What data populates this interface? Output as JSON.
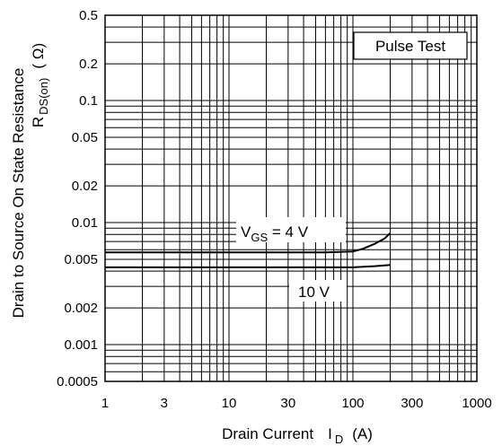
{
  "chart_data": {
    "type": "line",
    "x_scale": "log",
    "y_scale": "log",
    "xlim": [
      1,
      1000
    ],
    "ylim": [
      0.0005,
      0.5
    ],
    "grid": true,
    "x_ticks": [
      "1",
      "3",
      "10",
      "30",
      "100",
      "300",
      "1000"
    ],
    "x_tick_values": [
      1,
      3,
      10,
      30,
      100,
      300,
      1000
    ],
    "y_ticks": [
      "0.5",
      "0.2",
      "0.1",
      "0.05",
      "0.02",
      "0.01",
      "0.005",
      "0.002",
      "0.001",
      "0.0005"
    ],
    "y_tick_values": [
      0.5,
      0.2,
      0.1,
      0.05,
      0.02,
      0.01,
      0.005,
      0.002,
      0.001,
      0.0005
    ],
    "xlabel": {
      "main": "Drain Current",
      "symbol": "I",
      "sub": "D",
      "unit": "(A)"
    },
    "ylabel": {
      "line1": "Drain to Source On State Resistance",
      "symbol": "R",
      "sub": "DS(on)",
      "unit": "( Ω)"
    },
    "legend_box": "Pulse Test",
    "annotations": {
      "vgs4": {
        "pre": "V",
        "sub": "GS",
        "post": " = 4 V"
      },
      "vgs10": "10 V"
    },
    "series": [
      {
        "id": "vgs4",
        "x": [
          1,
          10,
          60,
          100,
          120,
          150,
          180,
          200
        ],
        "y": [
          0.0057,
          0.0057,
          0.0057,
          0.0058,
          0.0061,
          0.0067,
          0.0074,
          0.0082
        ]
      },
      {
        "id": "vgs10",
        "x": [
          1,
          10,
          100,
          150,
          200
        ],
        "y": [
          0.0043,
          0.0043,
          0.0043,
          0.0044,
          0.0045
        ]
      }
    ]
  }
}
